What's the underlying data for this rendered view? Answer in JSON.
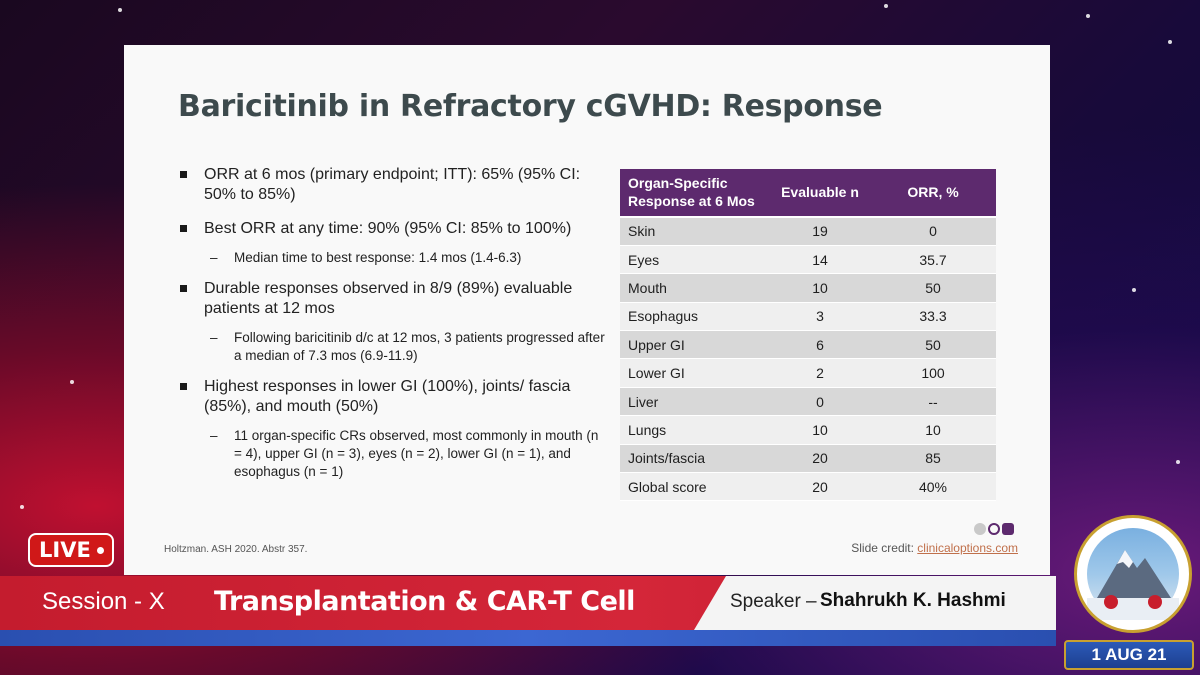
{
  "slide": {
    "title": "Baricitinib in Refractory cGVHD: Response",
    "bullets": [
      {
        "text": "ORR at 6 mos (primary endpoint; ITT): 65% (95% CI: 50% to 85%)",
        "subs": []
      },
      {
        "text": "Best ORR at any time: 90% (95% CI: 85% to 100%)",
        "subs": [
          "Median time to best response: 1.4 mos (1.4-6.3)"
        ]
      },
      {
        "text": "Durable responses observed in 8/9 (89%) evaluable patients at 12 mos",
        "subs": [
          "Following baricitinib d/c at 12 mos, 3 patients progressed after a median of 7.3 mos (6.9-11.9)"
        ]
      },
      {
        "text": "Highest responses in lower GI (100%), joints/ fascia (85%), and mouth (50%)",
        "subs": [
          "11 organ-specific CRs observed, most commonly in mouth (n = 4), upper GI (n = 3), eyes (n = 2), lower GI (n = 1), and esophagus (n = 1)"
        ]
      }
    ],
    "table": {
      "headers": [
        "Organ-Specific Response at 6 Mos",
        "Evaluable n",
        "ORR, %"
      ],
      "rows": [
        [
          "Skin",
          "19",
          "0"
        ],
        [
          "Eyes",
          "14",
          "35.7"
        ],
        [
          "Mouth",
          "10",
          "50"
        ],
        [
          "Esophagus",
          "3",
          "33.3"
        ],
        [
          "Upper GI",
          "6",
          "50"
        ],
        [
          "Lower GI",
          "2",
          "100"
        ],
        [
          "Liver",
          "0",
          "--"
        ],
        [
          "Lungs",
          "10",
          "10"
        ],
        [
          "Joints/fascia",
          "20",
          "85"
        ],
        [
          "Global score",
          "20",
          "40%"
        ]
      ]
    },
    "citation": "Holtzman. ASH 2020. Abstr 357.",
    "credit_prefix": "Slide credit: ",
    "credit_link": "clinicaloptions.com"
  },
  "live_badge": "LIVE",
  "lower_third": {
    "session": "Session - X",
    "topic": "Transplantation & CAR-T Cell",
    "speaker_prefix": "Speaker –",
    "speaker_name": "Shahrukh K. Hashmi"
  },
  "date": "1 AUG 21",
  "colors": {
    "table_header": "#5d2a6e",
    "banner_red": "#c41c2e",
    "banner_blue": "#2a4fb0"
  }
}
